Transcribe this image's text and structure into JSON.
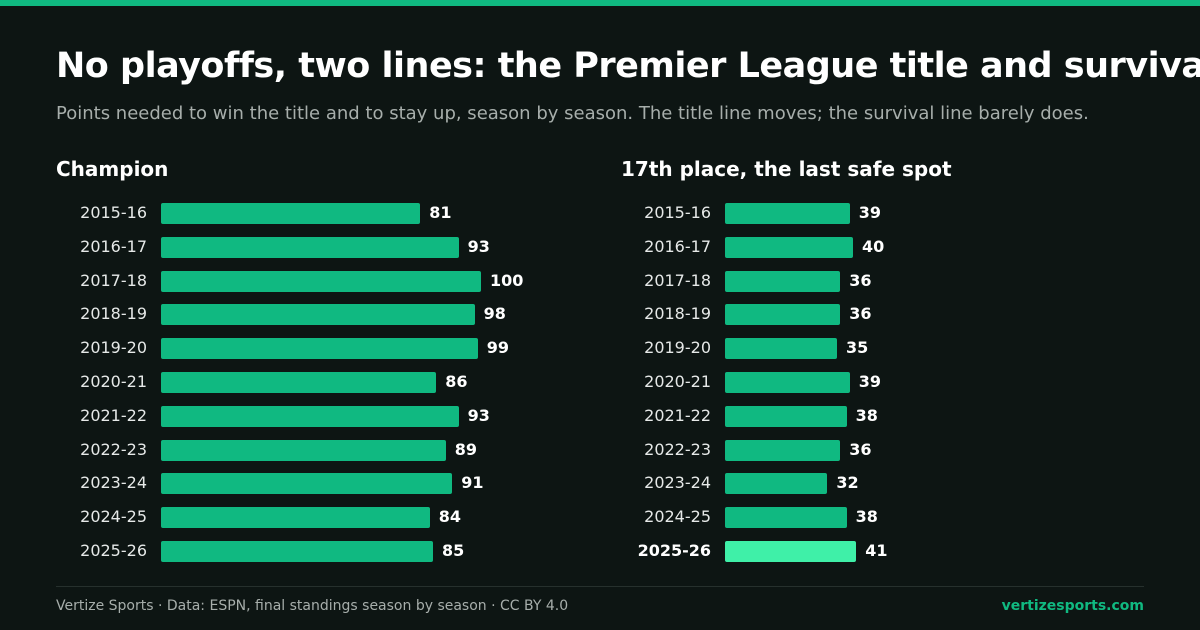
{
  "title": "No playoffs, two lines: the Premier League title and survival",
  "subtitle": "Points needed to win the title and to stay up, season by season. The title line moves; the survival line barely does.",
  "colors": {
    "bar": "#10b981",
    "highlight": "#3ff0a8",
    "accent": "#10b981"
  },
  "chart_data": [
    {
      "type": "bar",
      "orientation": "horizontal",
      "title": "Champion",
      "categories": [
        "2015-16",
        "2016-17",
        "2017-18",
        "2018-19",
        "2019-20",
        "2020-21",
        "2021-22",
        "2022-23",
        "2023-24",
        "2024-25",
        "2025-26"
      ],
      "values": [
        81,
        93,
        100,
        98,
        99,
        86,
        93,
        89,
        91,
        84,
        85
      ],
      "highlight": null
    },
    {
      "type": "bar",
      "orientation": "horizontal",
      "title": "17th place, the last safe spot",
      "categories": [
        "2015-16",
        "2016-17",
        "2017-18",
        "2018-19",
        "2019-20",
        "2020-21",
        "2021-22",
        "2022-23",
        "2023-24",
        "2024-25",
        "2025-26"
      ],
      "values": [
        39,
        40,
        36,
        36,
        35,
        39,
        38,
        36,
        32,
        38,
        41
      ],
      "highlight": "2025-26"
    }
  ],
  "footer": {
    "credit": "Vertize Sports · Data: ESPN, final standings season by season · CC BY 4.0",
    "brand": "vertizesports.com"
  }
}
